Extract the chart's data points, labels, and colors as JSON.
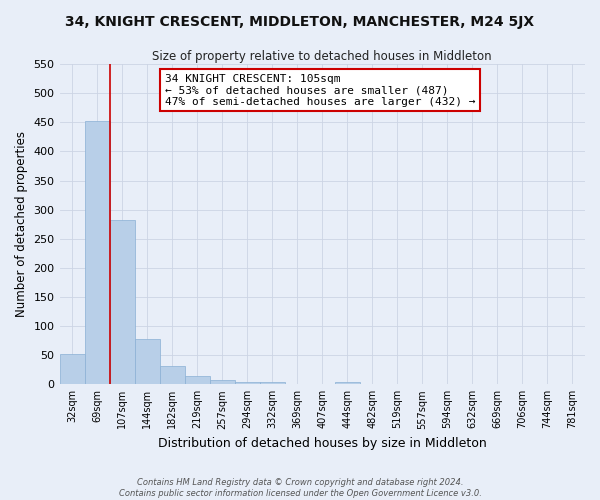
{
  "title": "34, KNIGHT CRESCENT, MIDDLETON, MANCHESTER, M24 5JX",
  "subtitle": "Size of property relative to detached houses in Middleton",
  "xlabel": "Distribution of detached houses by size in Middleton",
  "ylabel": "Number of detached properties",
  "bar_labels": [
    "32sqm",
    "69sqm",
    "107sqm",
    "144sqm",
    "182sqm",
    "219sqm",
    "257sqm",
    "294sqm",
    "332sqm",
    "369sqm",
    "407sqm",
    "444sqm",
    "482sqm",
    "519sqm",
    "557sqm",
    "594sqm",
    "632sqm",
    "669sqm",
    "706sqm",
    "744sqm",
    "781sqm"
  ],
  "bar_values": [
    52,
    452,
    283,
    77,
    31,
    14,
    8,
    4,
    4,
    0,
    0,
    4,
    0,
    0,
    0,
    0,
    0,
    0,
    0,
    0,
    0
  ],
  "bar_color": "#b8cfe8",
  "bar_edge_color": "#8ab0d4",
  "ylim": [
    0,
    550
  ],
  "yticks": [
    0,
    50,
    100,
    150,
    200,
    250,
    300,
    350,
    400,
    450,
    500,
    550
  ],
  "red_line_color": "#cc0000",
  "annotation_title": "34 KNIGHT CRESCENT: 105sqm",
  "annotation_line1": "← 53% of detached houses are smaller (487)",
  "annotation_line2": "47% of semi-detached houses are larger (432) →",
  "annotation_box_color": "#ffffff",
  "annotation_box_edge": "#cc0000",
  "grid_color": "#ccd4e4",
  "background_color": "#e8eef8",
  "footer_line1": "Contains HM Land Registry data © Crown copyright and database right 2024.",
  "footer_line2": "Contains public sector information licensed under the Open Government Licence v3.0."
}
